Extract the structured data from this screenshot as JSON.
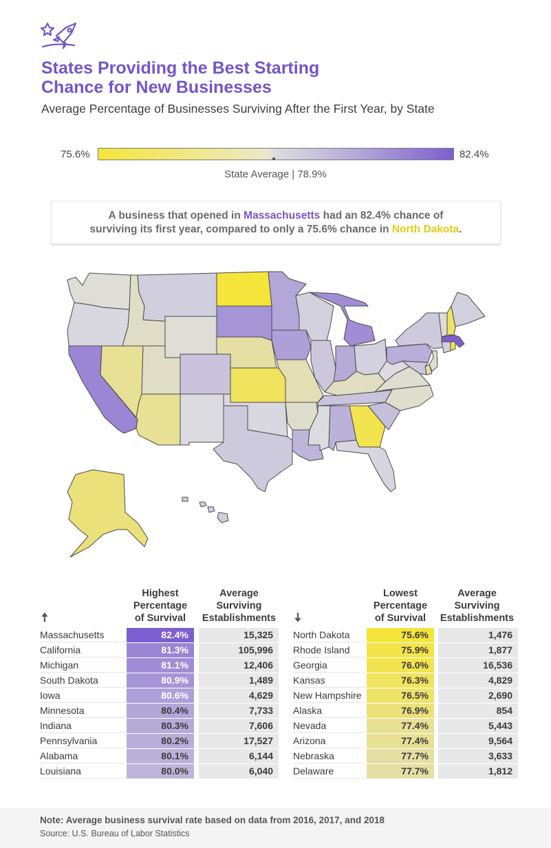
{
  "header": {
    "title_line1": "States Providing the Best Starting",
    "title_line2": "Chance for New Businesses",
    "subtitle": "Average Percentage of Businesses Surviving After the First Year, by State"
  },
  "legend": {
    "min": "75.6%",
    "max": "82.4%",
    "average": "State Average | 78.9%"
  },
  "callout": {
    "part1": "A business that opened in ",
    "state_high": "Massachusetts",
    "part2": " had an 82.4% chance of",
    "part3": "surviving its first year, compared to only a 75.6% chance in ",
    "state_low": "North Dakota",
    "part4": "."
  },
  "colors": {
    "accent": "#7356c8",
    "low": "#f5e53a",
    "high": "#7c5fcf",
    "neutral": "#dcdce0"
  },
  "map_values": {
    "WA": 78.7,
    "OR": 79.0,
    "CA": 81.3,
    "NV": 77.4,
    "ID": 78.4,
    "MT": 79.3,
    "WY": 78.7,
    "UT": 78.4,
    "AZ": 77.4,
    "CO": 79.6,
    "NM": 78.9,
    "ND": 75.6,
    "SD": 80.9,
    "NE": 77.7,
    "KS": 76.3,
    "OK": 79.0,
    "TX": 79.4,
    "MN": 80.4,
    "IA": 80.6,
    "MO": 78.0,
    "AR": 78.5,
    "LA": 80.0,
    "WI": 79.2,
    "IL": 79.5,
    "MI": 81.1,
    "IN": 80.3,
    "OH": 79.2,
    "KY": 78.3,
    "TN": 79.6,
    "MS": 78.9,
    "AL": 80.1,
    "GA": 76.0,
    "FL": 79.1,
    "SC": 79.7,
    "NC": 78.5,
    "VA": 78.6,
    "WV": 78.9,
    "PA": 80.2,
    "NY": 79.4,
    "VT": 78.8,
    "NH": 76.5,
    "ME": 79.2,
    "MA": 82.4,
    "RI": 75.9,
    "CT": 79.3,
    "NJ": 78.6,
    "DE": 77.7,
    "MD": 79.5,
    "AK": 76.9,
    "HI": 79.3
  },
  "table_high": {
    "header": "Highest Percentage of Survival",
    "header_lines": [
      "Highest",
      "Percentage",
      "of Survival"
    ],
    "est_header_lines": [
      "Average",
      "Surviving",
      "Establishments"
    ],
    "arrow": "🠅",
    "rows": [
      {
        "state": "Massachusetts",
        "pct": "82.4%",
        "est": "15,325",
        "value": 82.4
      },
      {
        "state": "California",
        "pct": "81.3%",
        "est": "105,996",
        "value": 81.3
      },
      {
        "state": "Michigan",
        "pct": "81.1%",
        "est": "12,406",
        "value": 81.1
      },
      {
        "state": "South Dakota",
        "pct": "80.9%",
        "est": "1,489",
        "value": 80.9
      },
      {
        "state": "Iowa",
        "pct": "80.6%",
        "est": "4,629",
        "value": 80.6
      },
      {
        "state": "Minnesota",
        "pct": "80.4%",
        "est": "7,733",
        "value": 80.4
      },
      {
        "state": "Indiana",
        "pct": "80.3%",
        "est": "7,606",
        "value": 80.3
      },
      {
        "state": "Pennsylvania",
        "pct": "80.2%",
        "est": "17,527",
        "value": 80.2
      },
      {
        "state": "Alabama",
        "pct": "80.1%",
        "est": "6,144",
        "value": 80.1
      },
      {
        "state": "Louisiana",
        "pct": "80.0%",
        "est": "6,040",
        "value": 80.0
      }
    ]
  },
  "table_low": {
    "header": "Lowest Percentage of Survival",
    "header_lines": [
      "Lowest",
      "Percentage",
      "of Survival"
    ],
    "est_header_lines": [
      "Average",
      "Surviving",
      "Establishments"
    ],
    "arrow": "🠇",
    "rows": [
      {
        "state": "North Dakota",
        "pct": "75.6%",
        "est": "1,476",
        "value": 75.6
      },
      {
        "state": "Rhode Island",
        "pct": "75.9%",
        "est": "1,877",
        "value": 75.9
      },
      {
        "state": "Georgia",
        "pct": "76.0%",
        "est": "16,536",
        "value": 76.0
      },
      {
        "state": "Kansas",
        "pct": "76.3%",
        "est": "4,829",
        "value": 76.3
      },
      {
        "state": "New Hampshire",
        "pct": "76.5%",
        "est": "2,690",
        "value": 76.5
      },
      {
        "state": "Alaska",
        "pct": "76.9%",
        "est": "854",
        "value": 76.9
      },
      {
        "state": "Nevada",
        "pct": "77.4%",
        "est": "5,443",
        "value": 77.4
      },
      {
        "state": "Arizona",
        "pct": "77.4%",
        "est": "9,564",
        "value": 77.4
      },
      {
        "state": "Nebraska",
        "pct": "77.7%",
        "est": "3,633",
        "value": 77.7
      },
      {
        "state": "Delaware",
        "pct": "77.7%",
        "est": "1,812",
        "value": 77.7
      }
    ]
  },
  "footer": {
    "note": "Note: Average business survival rate based on data from 2016, 2017, and 2018",
    "source": "Source: U.S. Bureau of Labor Statistics"
  }
}
